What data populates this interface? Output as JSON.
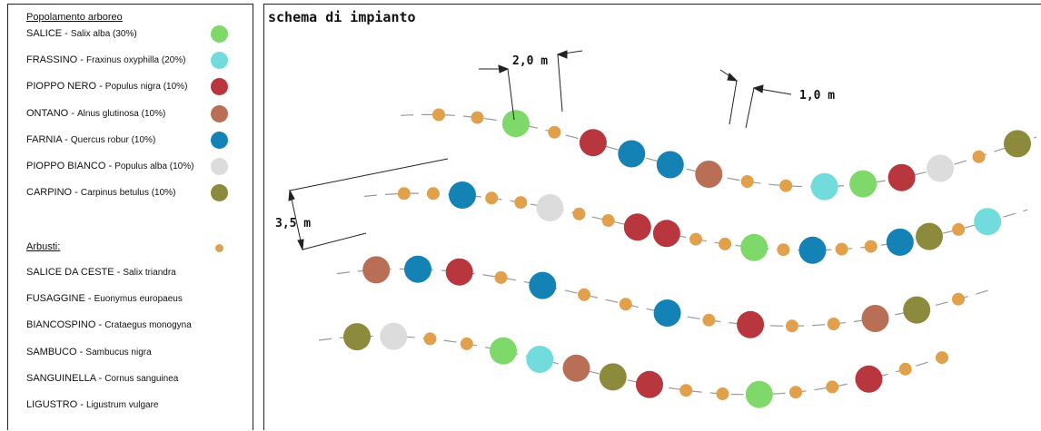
{
  "legend": {
    "trees_heading": "Popolamento arboreo",
    "trees": [
      {
        "common": "SALICE",
        "latin": "Salix alba (30%)",
        "color": "#7fd96a"
      },
      {
        "common": "FRASSINO",
        "latin": "Fraxinus oxyphilla (20%)",
        "color": "#72dcdc"
      },
      {
        "common": "PIOPPO NERO",
        "latin": "Populus nigra (10%)",
        "color": "#b8373f"
      },
      {
        "common": "ONTANO",
        "latin": "Alnus glutinosa (10%)",
        "color": "#b86f55"
      },
      {
        "common": "FARNIA",
        "latin": "Quercus robur (10%)",
        "color": "#1482b4"
      },
      {
        "common": "PIOPPO BIANCO",
        "latin": "Populus alba (10%)",
        "color": "#dcdcdc"
      },
      {
        "common": "CARPINO",
        "latin": "Carpinus betulus (10%)",
        "color": "#8c8a3c"
      }
    ],
    "shrubs_heading": "Arbusti:",
    "shrub_color": "#e1a04b",
    "shrubs": [
      {
        "common": "SALICE DA CESTE",
        "latin": "Salix triandra"
      },
      {
        "common": "FUSAGGINE",
        "latin": "Euonymus europaeus"
      },
      {
        "common": "BIANCOSPINO",
        "latin": "Crataegus monogyna"
      },
      {
        "common": "SAMBUCO",
        "latin": "Sambucus nigra"
      },
      {
        "common": "SANGUINELLA",
        "latin": "Cornus sanguinea"
      },
      {
        "common": "LIGUSTRO",
        "latin": "Ligustrum vulgare"
      }
    ]
  },
  "scheme": {
    "title": "schema di impianto",
    "dim_tree_spacing": "2,0 m",
    "dim_shrub_spacing": "1,0 m",
    "dim_row_spacing": "3,5 m",
    "rows": [
      [
        "s",
        "s",
        "G",
        "s",
        "R",
        "L",
        "L",
        "B",
        "s",
        "s",
        "F",
        "G",
        "R",
        "P",
        "s",
        "C"
      ],
      [
        "s",
        "s",
        "L",
        "s",
        "s",
        "P",
        "s",
        "s",
        "R",
        "R",
        "s",
        "s",
        "G",
        "s",
        "L",
        "s",
        "s",
        "L",
        "C",
        "s",
        "F"
      ],
      [
        "B",
        "L",
        "R",
        "s",
        "L",
        "s",
        "s",
        "L",
        "s",
        "R",
        "s",
        "s",
        "B",
        "C",
        "s"
      ],
      [
        "C",
        "P",
        "s",
        "s",
        "G",
        "F",
        "B",
        "C",
        "R",
        "s",
        "s",
        "G",
        "s",
        "s",
        "R",
        "s",
        "s"
      ]
    ]
  }
}
